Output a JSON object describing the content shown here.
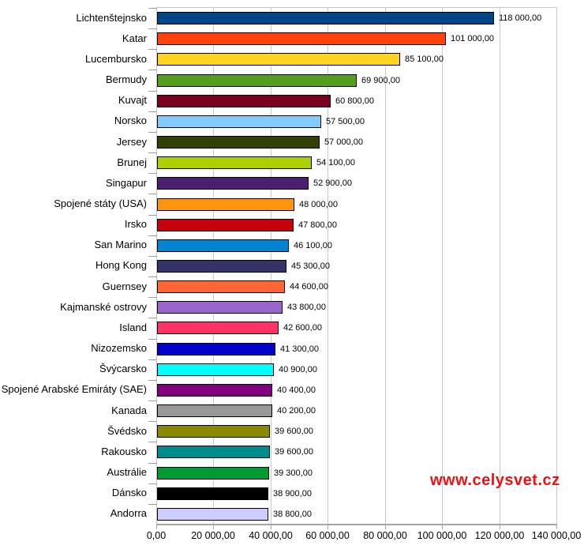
{
  "watermark": {
    "text": "www.celysvet.cz",
    "color": "#ee1111"
  },
  "chart_data": {
    "type": "bar",
    "orientation": "horizontal",
    "title": "",
    "xlabel": "",
    "ylabel": "",
    "grid": true,
    "legend": "none",
    "xlim": [
      0,
      140000
    ],
    "x_tick_values": [
      0,
      20000,
      40000,
      60000,
      80000,
      100000,
      120000,
      140000
    ],
    "x_tick_labels": [
      "0,00",
      "20 000,00",
      "40 000,00",
      "60 000,00",
      "80 000,00",
      "100 000,00",
      "120 000,00",
      "140 000,00"
    ],
    "categories": [
      "Lichtenštejnsko",
      "Katar",
      "Lucembursko",
      "Bermudy",
      "Kuvajt",
      "Norsko",
      "Jersey",
      "Brunej",
      "Singapur",
      "Spojené státy (USA)",
      "Irsko",
      "San Marino",
      "Hong Kong",
      "Guernsey",
      "Kajmanské ostrovy",
      "Island",
      "Nizozemsko",
      "Švýcarsko",
      "Spojené Arabské Emiráty (SAE)",
      "Kanada",
      "Švédsko",
      "Rakousko",
      "Austrálie",
      "Dánsko",
      "Andorra"
    ],
    "values": [
      118000,
      101000,
      85100,
      69900,
      60800,
      57500,
      57000,
      54100,
      52900,
      48000,
      47800,
      46100,
      45300,
      44600,
      43800,
      42600,
      41300,
      40900,
      40400,
      40200,
      39600,
      39600,
      39300,
      38900,
      38800
    ],
    "value_labels": [
      "118 000,00",
      "101 000,00",
      "85 100,00",
      "69 900,00",
      "60 800,00",
      "57 500,00",
      "57 000,00",
      "54 100,00",
      "52 900,00",
      "48 000,00",
      "47 800,00",
      "46 100,00",
      "45 300,00",
      "44 600,00",
      "43 800,00",
      "42 600,00",
      "41 300,00",
      "40 900,00",
      "40 400,00",
      "40 200,00",
      "39 600,00",
      "39 600,00",
      "39 300,00",
      "38 900,00",
      "38 800,00"
    ],
    "bar_colors": [
      "#004586",
      "#ff420e",
      "#ffd320",
      "#579d1c",
      "#7e0021",
      "#83caff",
      "#314004",
      "#aecf00",
      "#4b1f6f",
      "#ff950e",
      "#c5000b",
      "#0084d1",
      "#333366",
      "#ff6633",
      "#9966cc",
      "#ff3366",
      "#0000cd",
      "#00ffff",
      "#800080",
      "#999999",
      "#8a8a00",
      "#008c8c",
      "#009933",
      "#000000",
      "#ccccff"
    ],
    "bar_border_color": "#000000",
    "gridline_color": "#c9c9c9",
    "axis_color": "#a6a6a6"
  }
}
